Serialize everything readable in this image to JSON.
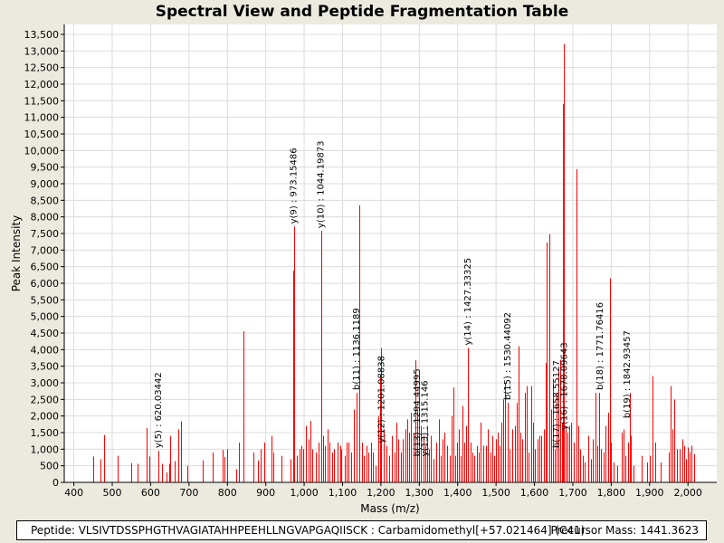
{
  "colors": {
    "background": "#eceadf",
    "plot_bg": "#ffffff",
    "grid": "#dcdcdc",
    "peak": "#ff0000"
  },
  "footer": {
    "peptide": "Peptide: VLSIVTDSSPHGTHVAGIATAHHPEEHLLNGVAPGAQIISCK : Carbamidomethyl[+57.021464] (C41)",
    "precursor": "Precursor Mass: 1441.3623"
  },
  "chart_data": {
    "type": "bar",
    "title": "Spectral View and Peptide Fragmentation Table",
    "xlabel": "Mass (m/z)",
    "ylabel": "Peak Intensity",
    "xlim": [
      375,
      2075
    ],
    "ylim": [
      0,
      13800
    ],
    "x_ticks": [
      400,
      500,
      600,
      700,
      800,
      900,
      1000,
      1100,
      1200,
      1300,
      1400,
      1500,
      1600,
      1700,
      1800,
      1900,
      2000
    ],
    "x_tick_labels": [
      "400",
      "500",
      "600",
      "700",
      "800",
      "900",
      "1,000",
      "1,100",
      "1,200",
      "1,300",
      "1,400",
      "1,500",
      "1,600",
      "1,700",
      "1,800",
      "1,900",
      "2,000"
    ],
    "y_ticks": [
      0,
      500,
      1000,
      1500,
      2000,
      2500,
      3000,
      3500,
      4000,
      4500,
      5000,
      5500,
      6000,
      6500,
      7000,
      7500,
      8000,
      8500,
      9000,
      9500,
      10000,
      10500,
      11000,
      11500,
      12000,
      12500,
      13000,
      13500
    ],
    "y_tick_labels": [
      "0",
      "500",
      "1,000",
      "1,500",
      "2,000",
      "2,500",
      "3,000",
      "3,500",
      "4,000",
      "4,500",
      "5,000",
      "5,500",
      "6,000",
      "6,500",
      "7,000",
      "7,500",
      "8,000",
      "8,500",
      "9,000",
      "9,500",
      "10,000",
      "10,500",
      "11,000",
      "11,500",
      "12,000",
      "12,500",
      "13,000",
      "13,500"
    ],
    "grid": true,
    "peaks": [
      [
        450,
        780
      ],
      [
        470,
        700
      ],
      [
        478,
        1430
      ],
      [
        515,
        800
      ],
      [
        550,
        580
      ],
      [
        565,
        560
      ],
      [
        590,
        1640
      ],
      [
        597,
        780
      ],
      [
        620,
        950
      ],
      [
        630,
        560
      ],
      [
        642,
        300
      ],
      [
        648,
        560
      ],
      [
        652,
        1400
      ],
      [
        663,
        640
      ],
      [
        672,
        1600
      ],
      [
        678,
        1840
      ],
      [
        695,
        500
      ],
      [
        735,
        660
      ],
      [
        762,
        900
      ],
      [
        788,
        980
      ],
      [
        792,
        770
      ],
      [
        799,
        1000
      ],
      [
        822,
        400
      ],
      [
        830,
        1200
      ],
      [
        842,
        4550
      ],
      [
        867,
        900
      ],
      [
        880,
        660
      ],
      [
        887,
        1000
      ],
      [
        895,
        1200
      ],
      [
        915,
        1400
      ],
      [
        919,
        900
      ],
      [
        940,
        800
      ],
      [
        964,
        700
      ],
      [
        972,
        6380
      ],
      [
        973,
        7710
      ],
      [
        980,
        800
      ],
      [
        988,
        1000
      ],
      [
        993,
        1100
      ],
      [
        998,
        1000
      ],
      [
        1005,
        1700
      ],
      [
        1011,
        1300
      ],
      [
        1016,
        1850
      ],
      [
        1022,
        1000
      ],
      [
        1030,
        900
      ],
      [
        1037,
        1200
      ],
      [
        1044,
        7580
      ],
      [
        1050,
        1400
      ],
      [
        1055,
        1100
      ],
      [
        1060,
        1600
      ],
      [
        1066,
        1200
      ],
      [
        1072,
        900
      ],
      [
        1078,
        1000
      ],
      [
        1086,
        1200
      ],
      [
        1093,
        1100
      ],
      [
        1097,
        1000
      ],
      [
        1105,
        800
      ],
      [
        1111,
        1200
      ],
      [
        1116,
        1200
      ],
      [
        1122,
        900
      ],
      [
        1130,
        2200
      ],
      [
        1136,
        2700
      ],
      [
        1143,
        8350
      ],
      [
        1150,
        1200
      ],
      [
        1155,
        800
      ],
      [
        1162,
        1100
      ],
      [
        1168,
        900
      ],
      [
        1175,
        1200
      ],
      [
        1180,
        900
      ],
      [
        1187,
        500
      ],
      [
        1192,
        2000
      ],
      [
        1197,
        3200
      ],
      [
        1201,
        4050
      ],
      [
        1207,
        1600
      ],
      [
        1214,
        1100
      ],
      [
        1221,
        800
      ],
      [
        1228,
        1400
      ],
      [
        1235,
        900
      ],
      [
        1240,
        1800
      ],
      [
        1246,
        1300
      ],
      [
        1252,
        900
      ],
      [
        1258,
        1300
      ],
      [
        1263,
        1600
      ],
      [
        1268,
        1900
      ],
      [
        1273,
        1500
      ],
      [
        1279,
        2100
      ],
      [
        1285,
        1500
      ],
      [
        1290,
        3680
      ],
      [
        1294,
        2200
      ],
      [
        1299,
        3300
      ],
      [
        1304,
        1700
      ],
      [
        1310,
        1400
      ],
      [
        1315,
        1100
      ],
      [
        1320,
        1700
      ],
      [
        1326,
        1000
      ],
      [
        1331,
        1400
      ],
      [
        1338,
        700
      ],
      [
        1344,
        1200
      ],
      [
        1350,
        1900
      ],
      [
        1356,
        800
      ],
      [
        1360,
        1300
      ],
      [
        1366,
        1500
      ],
      [
        1372,
        1100
      ],
      [
        1379,
        800
      ],
      [
        1385,
        2000
      ],
      [
        1388,
        2860
      ],
      [
        1393,
        800
      ],
      [
        1398,
        1200
      ],
      [
        1403,
        1600
      ],
      [
        1407,
        800
      ],
      [
        1412,
        2300
      ],
      [
        1417,
        1200
      ],
      [
        1423,
        1700
      ],
      [
        1427,
        4050
      ],
      [
        1433,
        1200
      ],
      [
        1438,
        900
      ],
      [
        1443,
        800
      ],
      [
        1449,
        1100
      ],
      [
        1455,
        900
      ],
      [
        1460,
        1800
      ],
      [
        1467,
        1100
      ],
      [
        1473,
        1100
      ],
      [
        1479,
        1600
      ],
      [
        1486,
        900
      ],
      [
        1490,
        1400
      ],
      [
        1494,
        800
      ],
      [
        1500,
        1300
      ],
      [
        1504,
        1500
      ],
      [
        1509,
        1100
      ],
      [
        1514,
        1800
      ],
      [
        1519,
        2500
      ],
      [
        1524,
        3000
      ],
      [
        1530,
        2400
      ],
      [
        1536,
        1000
      ],
      [
        1542,
        1600
      ],
      [
        1550,
        1700
      ],
      [
        1554,
        2400
      ],
      [
        1559,
        4100
      ],
      [
        1564,
        1500
      ],
      [
        1568,
        1300
      ],
      [
        1574,
        2700
      ],
      [
        1580,
        2900
      ],
      [
        1585,
        900
      ],
      [
        1591,
        2900
      ],
      [
        1596,
        1800
      ],
      [
        1601,
        1000
      ],
      [
        1607,
        1300
      ],
      [
        1612,
        1400
      ],
      [
        1618,
        1400
      ],
      [
        1624,
        1600
      ],
      [
        1629,
        3600
      ],
      [
        1632,
        7230
      ],
      [
        1638,
        7480
      ],
      [
        1643,
        2200
      ],
      [
        1648,
        3000
      ],
      [
        1652,
        1000
      ],
      [
        1658,
        2700
      ],
      [
        1663,
        3400
      ],
      [
        1667,
        3700
      ],
      [
        1671,
        1800
      ],
      [
        1674,
        11400
      ],
      [
        1676,
        13210
      ],
      [
        1682,
        1700
      ],
      [
        1685,
        1500
      ],
      [
        1690,
        1700
      ],
      [
        1696,
        1800
      ],
      [
        1702,
        1200
      ],
      [
        1709,
        9440
      ],
      [
        1714,
        1700
      ],
      [
        1720,
        1000
      ],
      [
        1725,
        800
      ],
      [
        1731,
        600
      ],
      [
        1740,
        1400
      ],
      [
        1747,
        700
      ],
      [
        1752,
        1300
      ],
      [
        1758,
        2700
      ],
      [
        1763,
        1100
      ],
      [
        1768,
        2700
      ],
      [
        1773,
        1000
      ],
      [
        1780,
        900
      ],
      [
        1785,
        1700
      ],
      [
        1792,
        2100
      ],
      [
        1796,
        6150
      ],
      [
        1800,
        1200
      ],
      [
        1806,
        600
      ],
      [
        1815,
        500
      ],
      [
        1827,
        1500
      ],
      [
        1832,
        1600
      ],
      [
        1838,
        800
      ],
      [
        1843,
        1200
      ],
      [
        1848,
        2700
      ],
      [
        1852,
        1400
      ],
      [
        1858,
        500
      ],
      [
        1880,
        800
      ],
      [
        1893,
        600
      ],
      [
        1901,
        800
      ],
      [
        1908,
        3200
      ],
      [
        1914,
        1200
      ],
      [
        1929,
        600
      ],
      [
        1951,
        900
      ],
      [
        1955,
        2900
      ],
      [
        1959,
        1600
      ],
      [
        1965,
        2500
      ],
      [
        1971,
        1000
      ],
      [
        1978,
        1000
      ],
      [
        1985,
        1300
      ],
      [
        1990,
        1100
      ],
      [
        1996,
        700
      ],
      [
        2000,
        1050
      ],
      [
        2005,
        900
      ],
      [
        2010,
        1100
      ],
      [
        2015,
        850
      ]
    ],
    "annotations": [
      {
        "label": "y(5) : 620.03442",
        "x": 620,
        "y": 950
      },
      {
        "label": "y(9) : 973.15486",
        "x": 973,
        "y": 7710
      },
      {
        "label": "y(10) : 1044.19873",
        "x": 1044,
        "y": 7580
      },
      {
        "label": "b(11) : 1136.1189",
        "x": 1136,
        "y": 2700
      },
      {
        "label": "y(12) : 1201.08838",
        "x": 1201,
        "y": 1100
      },
      {
        "label": "b(13) : 1294.44995",
        "x": 1294,
        "y": 700
      },
      {
        "label": "y(13) : 1315.146",
        "x": 1315,
        "y": 700
      },
      {
        "label": "y(14) : 1427.33325",
        "x": 1427,
        "y": 4050
      },
      {
        "label": "b(15) : 1530.44092",
        "x": 1530,
        "y": 2400
      },
      {
        "label": "b(17) : 1658.55127",
        "x": 1658,
        "y": 950
      },
      {
        "label": "y(16) : 1678.09643",
        "x": 1678,
        "y": 1500
      },
      {
        "label": "b(18) : 1771.76416",
        "x": 1771,
        "y": 2700
      },
      {
        "label": "b(19) : 1842.93457",
        "x": 1842,
        "y": 1850
      }
    ]
  }
}
